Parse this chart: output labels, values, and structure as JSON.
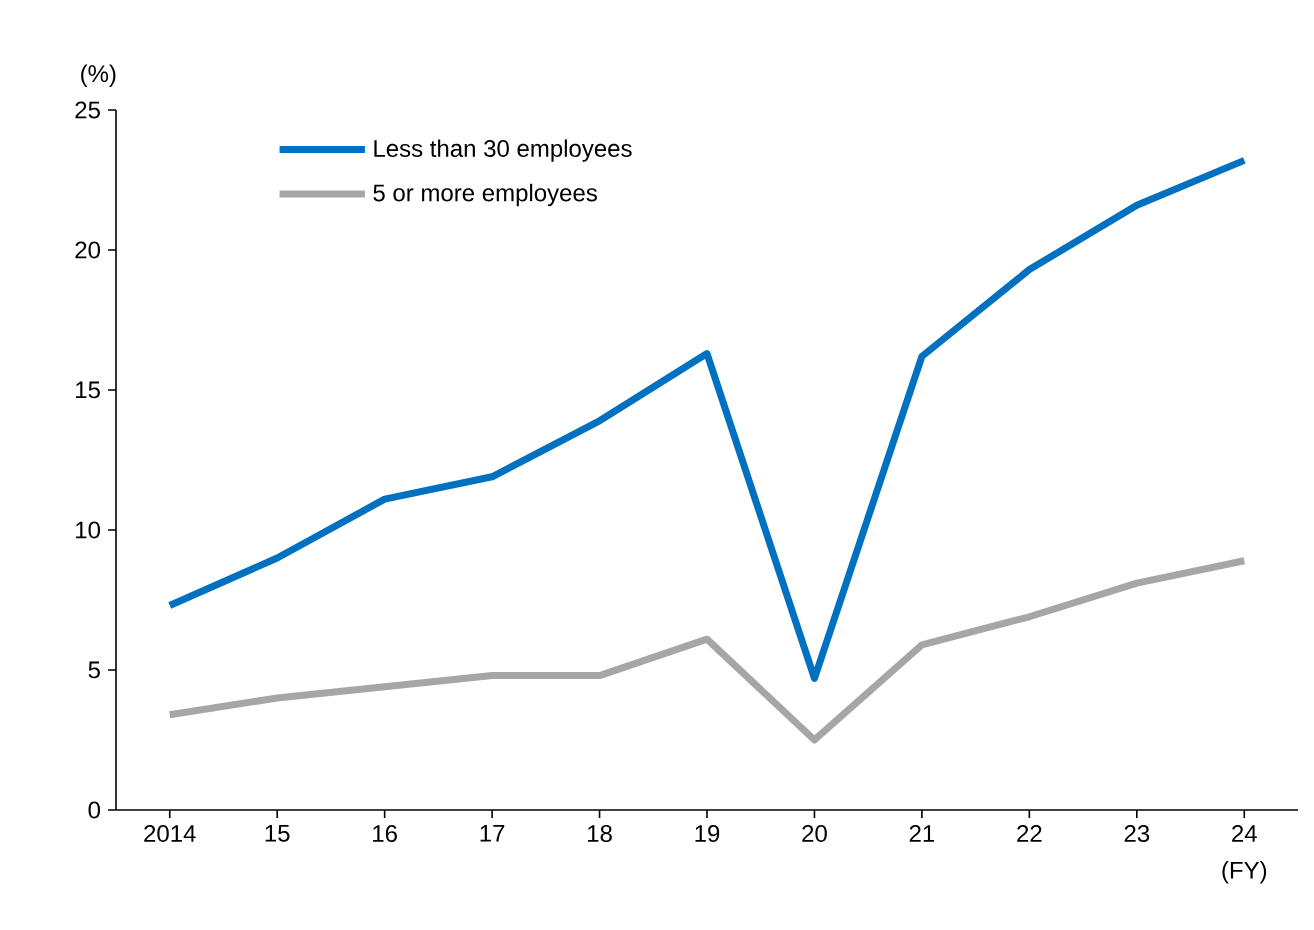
{
  "chart_data": {
    "type": "line",
    "ylabel": "(%)",
    "xlabel": "(FY)",
    "categories": [
      "2014",
      "15",
      "16",
      "17",
      "18",
      "19",
      "20",
      "21",
      "22",
      "23",
      "24"
    ],
    "ylim": [
      0,
      25
    ],
    "yticks": [
      0,
      5,
      10,
      15,
      20,
      25
    ],
    "legend": "top left",
    "series": [
      {
        "name": "Less than 30 employees",
        "color": "#0070c0",
        "values": [
          7.3,
          9.0,
          11.1,
          11.9,
          13.9,
          16.3,
          4.7,
          16.2,
          19.3,
          21.6,
          23.2
        ]
      },
      {
        "name": "5 or more employees",
        "color": "#a6a6a6",
        "values": [
          3.4,
          4.0,
          4.4,
          4.8,
          4.8,
          6.1,
          2.5,
          5.9,
          6.9,
          8.1,
          8.9
        ]
      }
    ]
  }
}
